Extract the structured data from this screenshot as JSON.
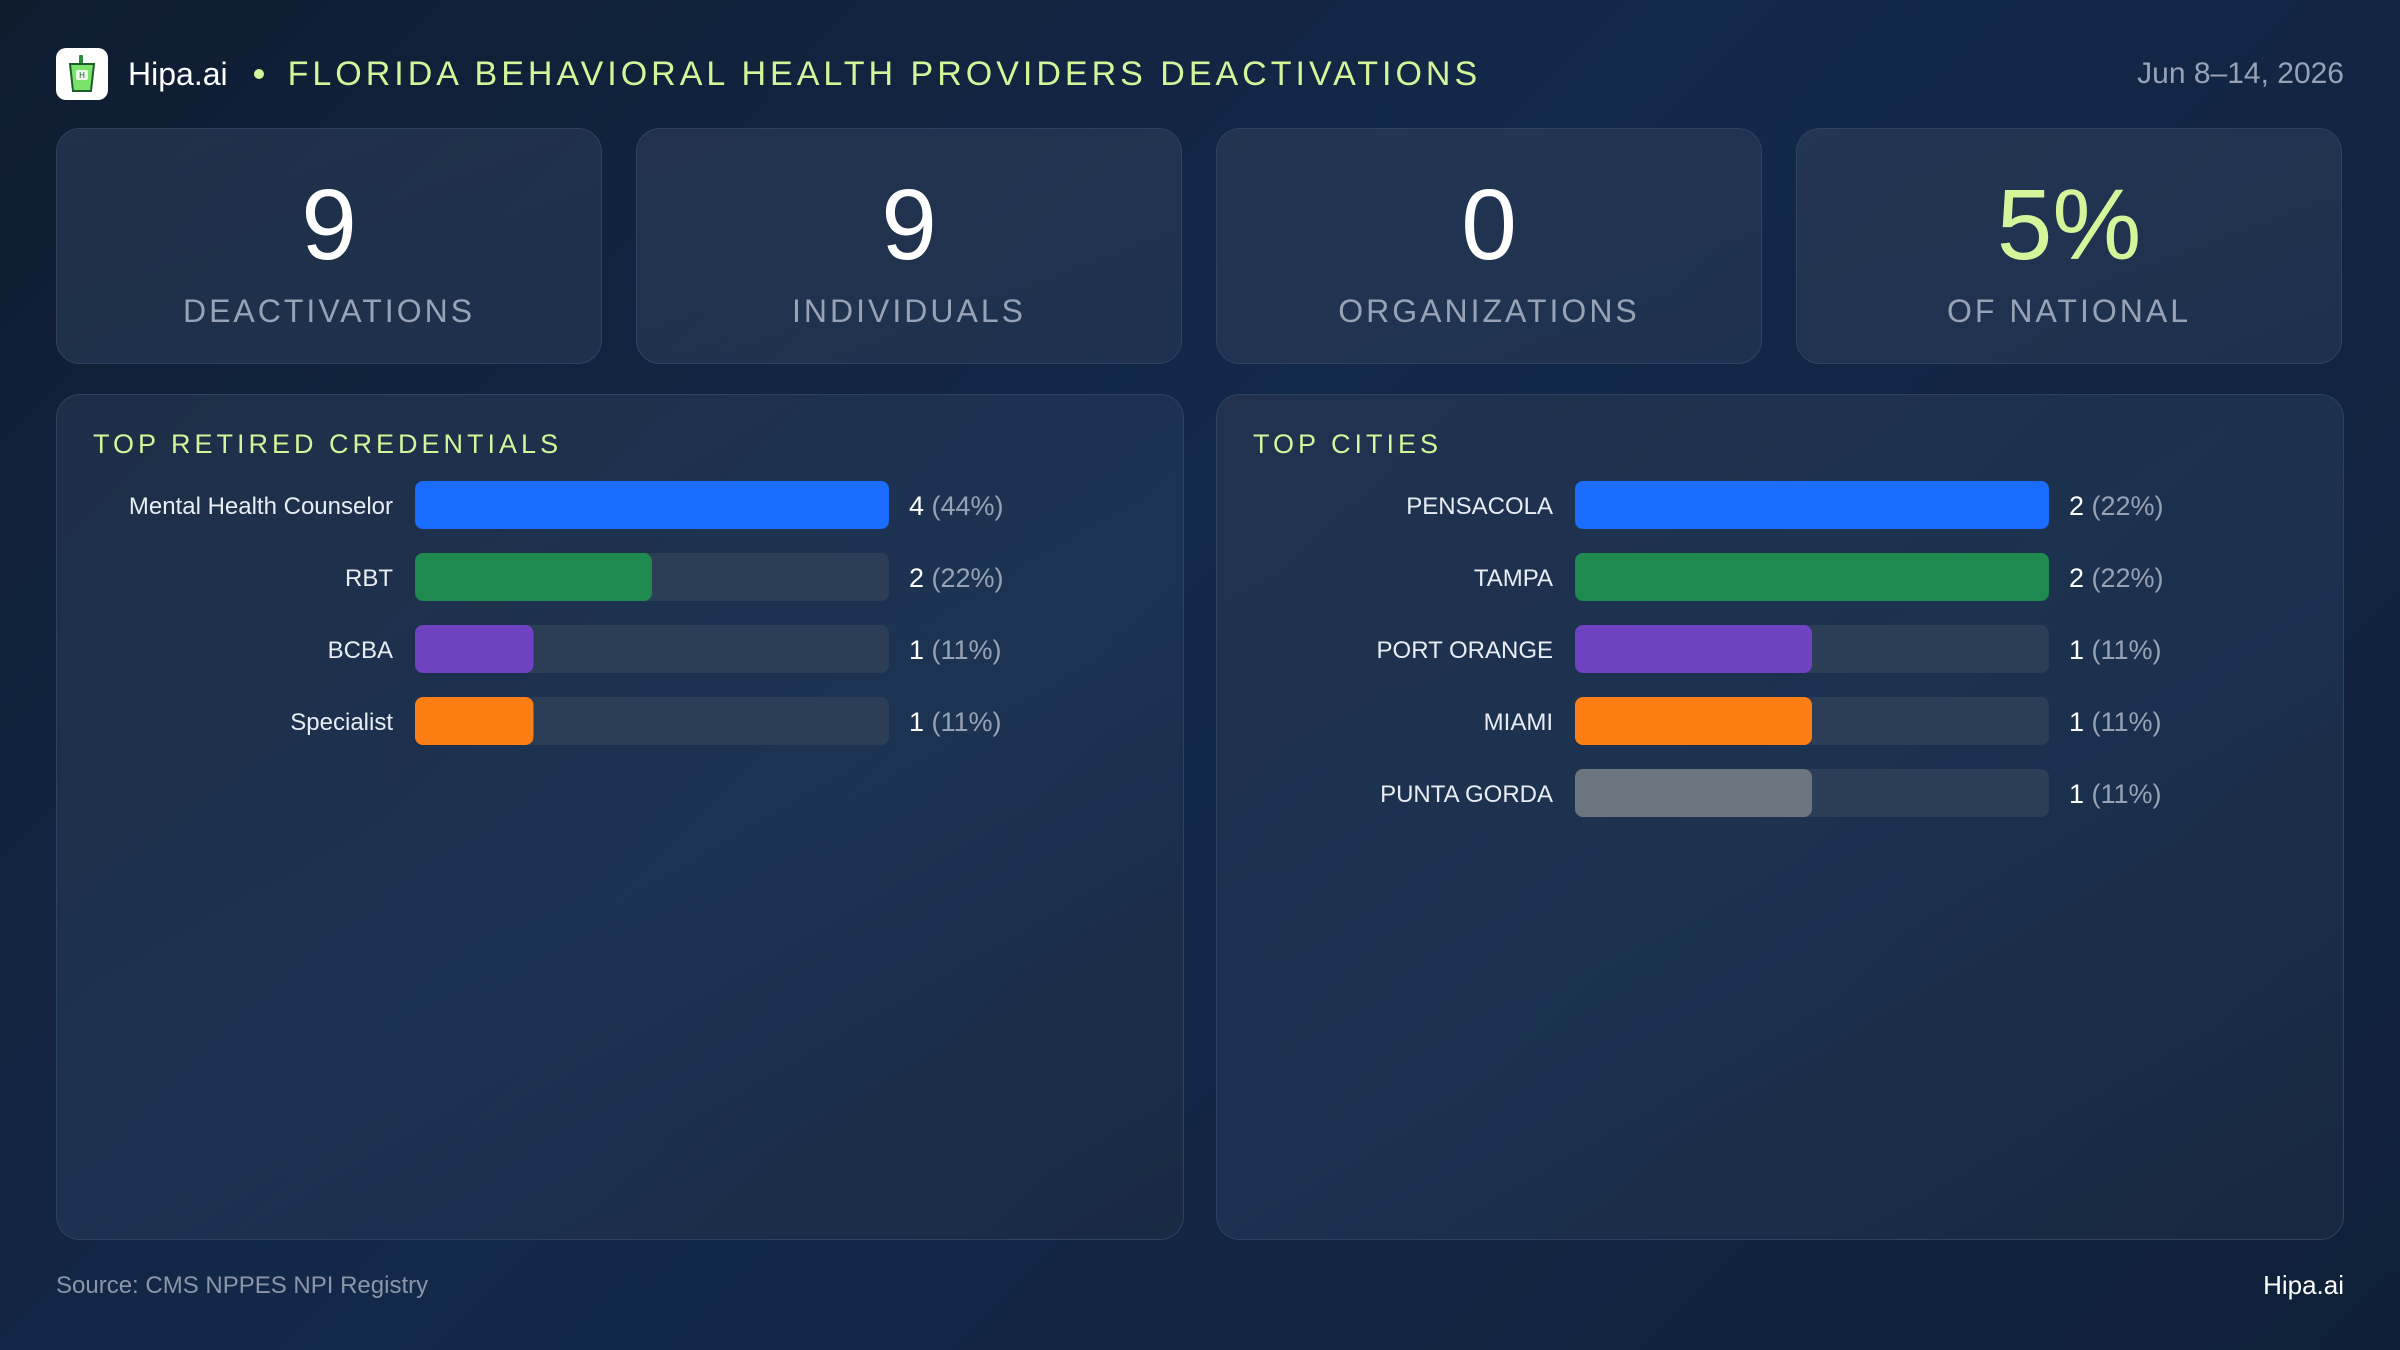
{
  "header": {
    "brand": "Hipa.ai",
    "title": "FLORIDA BEHAVIORAL HEALTH PROVIDERS DEACTIVATIONS",
    "date": "Jun 8–14, 2026"
  },
  "kpis": [
    {
      "value": "9",
      "label": "DEACTIVATIONS"
    },
    {
      "value": "9",
      "label": "INDIVIDUALS"
    },
    {
      "value": "0",
      "label": "ORGANIZATIONS"
    },
    {
      "value": "5%",
      "label": "OF NATIONAL"
    }
  ],
  "chart_data": [
    {
      "type": "bar",
      "orientation": "horizontal",
      "title": "TOP RETIRED CREDENTIALS",
      "categories": [
        "Mental Health Counselor",
        "RBT",
        "BCBA",
        "Specialist"
      ],
      "values": [
        4,
        2,
        1,
        1
      ],
      "percent_labels": [
        "(44%)",
        "(22%)",
        "(11%)",
        "(11%)"
      ],
      "xlim": [
        0,
        4
      ],
      "colors": [
        "#1a6dff",
        "#1e8a50",
        "#6f42c1",
        "#fd7e14"
      ],
      "track_color": "#2c3d56"
    },
    {
      "type": "bar",
      "orientation": "horizontal",
      "title": "TOP CITIES",
      "categories": [
        "PENSACOLA",
        "TAMPA",
        "PORT ORANGE",
        "MIAMI",
        "PUNTA GORDA"
      ],
      "values": [
        2,
        2,
        1,
        1,
        1
      ],
      "percent_labels": [
        "(22%)",
        "(22%)",
        "(11%)",
        "(11%)",
        "(11%)"
      ],
      "xlim": [
        0,
        2
      ],
      "colors": [
        "#1a6dff",
        "#1e8a50",
        "#6f42c1",
        "#fd7e14",
        "#6c757d"
      ],
      "track_color": "#2c3d56"
    }
  ],
  "footer": {
    "source": "Source: CMS NPPES NPI Registry",
    "brand": "Hipa.ai"
  },
  "colors": {
    "accent": "#d4f59a",
    "muted_text": "#97a3b5"
  }
}
